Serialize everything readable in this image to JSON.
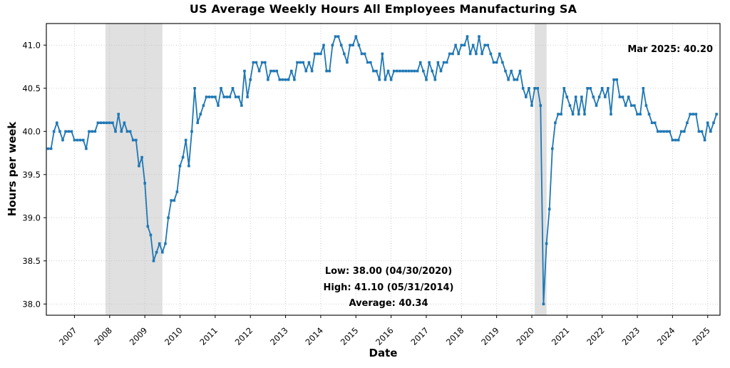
{
  "figure": {
    "title": "US Average Weekly Hours All Employees Manufacturing SA"
  },
  "axes": {
    "xlabel": "Date",
    "ylabel": "Hours per week"
  },
  "annotations": {
    "latest": "Mar 2025: 40.20",
    "low": "Low: 38.00 (04/30/2020)",
    "high": "High: 41.10 (05/31/2014)",
    "average": "Average: 40.34"
  },
  "chart_data": {
    "type": "line",
    "title": "US Average Weekly Hours All Employees Manufacturing SA",
    "xlabel": "Date",
    "ylabel": "Hours per week",
    "frequency": "monthly",
    "start_month": "2006-03",
    "end_month": "2025-03",
    "values": [
      39.8,
      39.8,
      40.0,
      40.1,
      40.0,
      39.9,
      40.0,
      40.0,
      40.0,
      39.9,
      39.9,
      39.9,
      39.9,
      39.8,
      40.0,
      40.0,
      40.0,
      40.1,
      40.1,
      40.1,
      40.1,
      40.1,
      40.1,
      40.0,
      40.2,
      40.0,
      40.1,
      40.0,
      40.0,
      39.9,
      39.9,
      39.6,
      39.7,
      39.4,
      38.9,
      38.8,
      38.5,
      38.6,
      38.7,
      38.6,
      38.7,
      39.0,
      39.2,
      39.2,
      39.3,
      39.6,
      39.7,
      39.9,
      39.6,
      40.0,
      40.5,
      40.1,
      40.2,
      40.3,
      40.4,
      40.4,
      40.4,
      40.4,
      40.3,
      40.5,
      40.4,
      40.4,
      40.4,
      40.5,
      40.4,
      40.4,
      40.3,
      40.7,
      40.4,
      40.6,
      40.8,
      40.8,
      40.7,
      40.8,
      40.8,
      40.6,
      40.7,
      40.7,
      40.7,
      40.6,
      40.6,
      40.6,
      40.6,
      40.7,
      40.6,
      40.8,
      40.8,
      40.8,
      40.7,
      40.8,
      40.7,
      40.9,
      40.9,
      40.9,
      41.0,
      40.7,
      40.7,
      41.0,
      41.1,
      41.1,
      41.0,
      40.9,
      40.8,
      41.0,
      41.0,
      41.1,
      41.0,
      40.9,
      40.9,
      40.8,
      40.8,
      40.7,
      40.7,
      40.6,
      40.9,
      40.6,
      40.7,
      40.6,
      40.7,
      40.7,
      40.7,
      40.7,
      40.7,
      40.7,
      40.7,
      40.7,
      40.7,
      40.8,
      40.7,
      40.6,
      40.8,
      40.7,
      40.6,
      40.8,
      40.7,
      40.8,
      40.8,
      40.9,
      40.9,
      41.0,
      40.9,
      41.0,
      41.0,
      41.1,
      40.9,
      41.0,
      40.9,
      41.1,
      40.9,
      41.0,
      41.0,
      40.9,
      40.8,
      40.8,
      40.9,
      40.8,
      40.7,
      40.6,
      40.7,
      40.6,
      40.6,
      40.7,
      40.5,
      40.4,
      40.5,
      40.3,
      40.5,
      40.5,
      40.3,
      38.0,
      38.7,
      39.1,
      39.8,
      40.1,
      40.2,
      40.2,
      40.5,
      40.4,
      40.3,
      40.2,
      40.4,
      40.2,
      40.4,
      40.2,
      40.5,
      40.5,
      40.4,
      40.3,
      40.4,
      40.5,
      40.4,
      40.5,
      40.2,
      40.6,
      40.6,
      40.4,
      40.4,
      40.3,
      40.4,
      40.3,
      40.3,
      40.2,
      40.2,
      40.5,
      40.3,
      40.2,
      40.1,
      40.1,
      40.0,
      40.0,
      40.0,
      40.0,
      40.0,
      39.9,
      39.9,
      39.9,
      40.0,
      40.0,
      40.1,
      40.2,
      40.2,
      40.2,
      40.0,
      40.0,
      39.9,
      40.1,
      40.0,
      40.1,
      40.2
    ],
    "yticks": [
      38.0,
      38.5,
      39.0,
      39.5,
      40.0,
      40.5,
      41.0
    ],
    "ytick_labels": [
      "38.0",
      "38.5",
      "39.0",
      "39.5",
      "40.0",
      "40.5",
      "41.0"
    ],
    "xticks": [
      2007,
      2008,
      2009,
      2010,
      2011,
      2012,
      2013,
      2014,
      2015,
      2016,
      2017,
      2018,
      2019,
      2020,
      2021,
      2022,
      2023,
      2024,
      2025
    ],
    "xtick_labels": [
      "2007",
      "2008",
      "2009",
      "2010",
      "2011",
      "2012",
      "2013",
      "2014",
      "2015",
      "2016",
      "2017",
      "2018",
      "2019",
      "2020",
      "2021",
      "2022",
      "2023",
      "2024",
      "2025"
    ],
    "ylim": [
      37.87,
      41.25
    ],
    "xlim": [
      2006.2,
      2025.35
    ],
    "grid": true,
    "legend": "none",
    "line_color": "#1f77b4",
    "band_color": "#d6d6d6",
    "recession_bands": [
      [
        2007.88,
        2009.5
      ],
      [
        2020.08,
        2020.42
      ]
    ],
    "stats": {
      "low": 38.0,
      "low_date": "04/30/2020",
      "high": 41.1,
      "high_date": "05/31/2014",
      "average": 40.34,
      "latest": 40.2,
      "latest_label": "Mar 2025"
    }
  }
}
